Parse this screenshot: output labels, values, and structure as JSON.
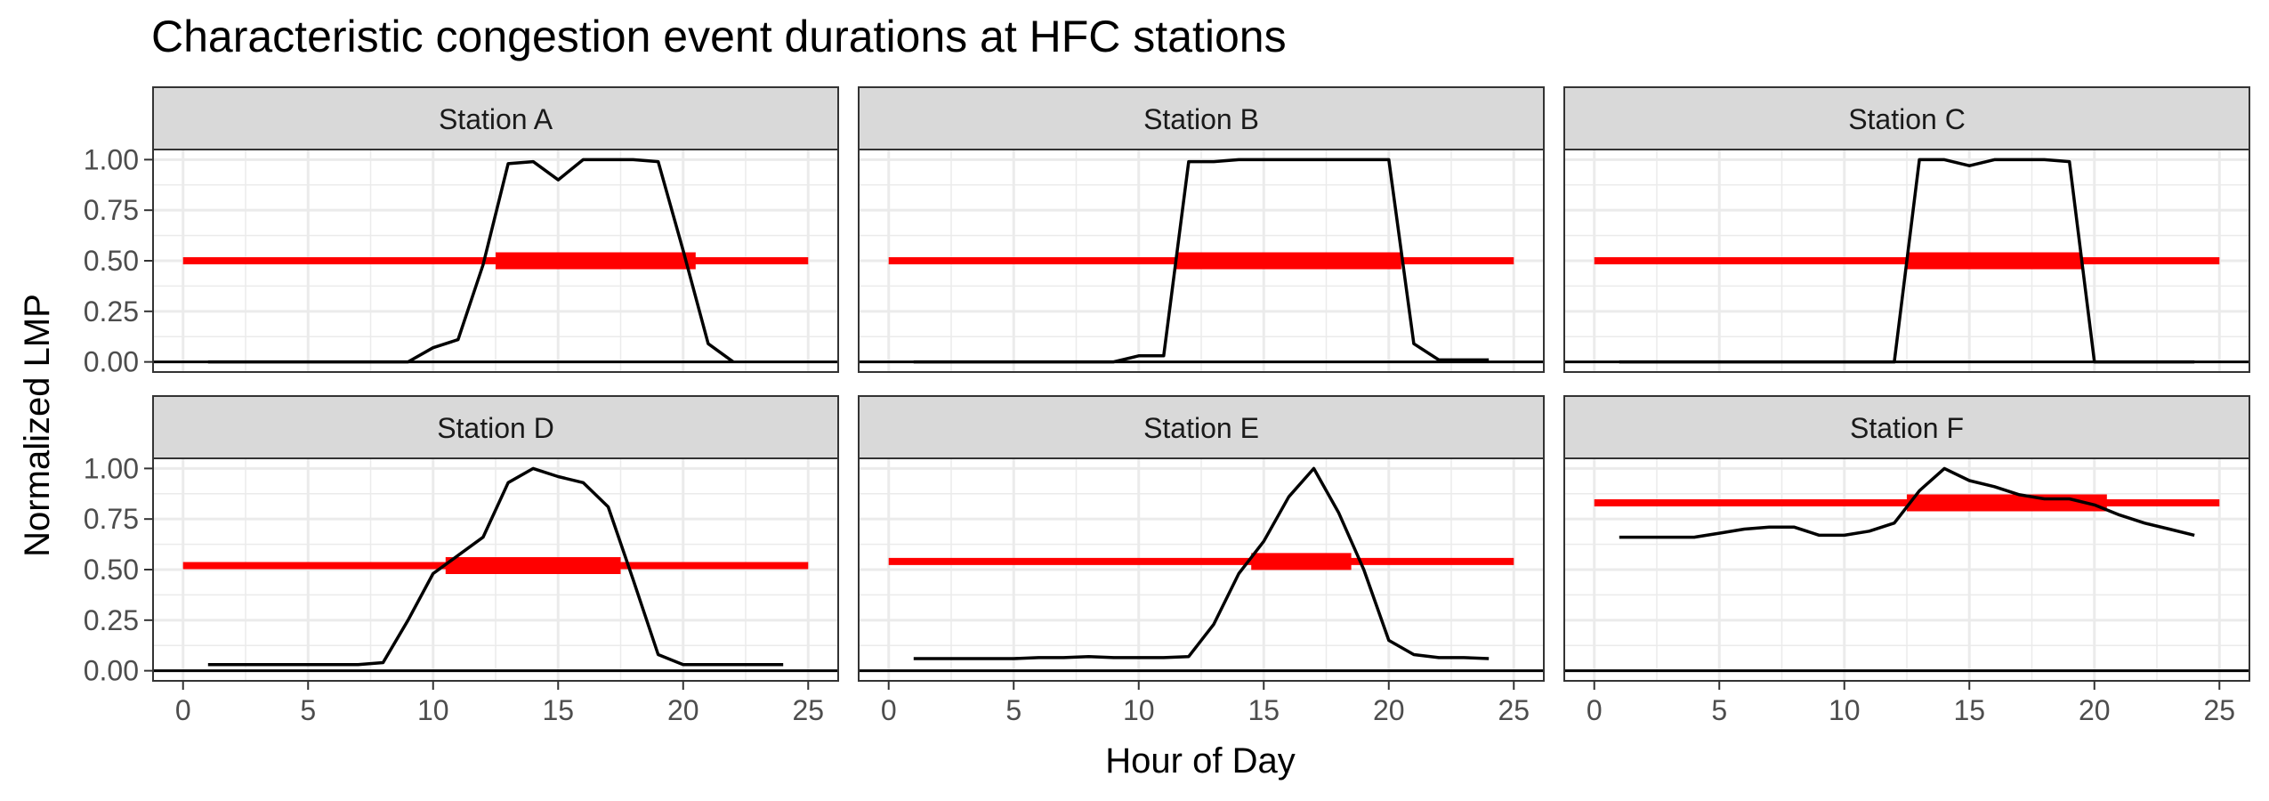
{
  "chart_data": {
    "type": "line",
    "title": "Characteristic congestion event durations at HFC stations",
    "xlabel": "Hour of Day",
    "ylabel": "Normalized LMP",
    "xlim": [
      -1.2,
      26.2
    ],
    "ylim": [
      -0.05,
      1.05
    ],
    "x_ticks": [
      0,
      5,
      10,
      15,
      20,
      25
    ],
    "y_ticks": [
      0.0,
      0.25,
      0.5,
      0.75,
      1.0
    ],
    "x_tick_labels": [
      "0",
      "5",
      "10",
      "15",
      "20",
      "25"
    ],
    "y_tick_labels": [
      "0.00",
      "0.25",
      "0.50",
      "0.75",
      "1.00"
    ],
    "grid": true,
    "threshold_line_range": [
      0,
      25
    ],
    "colors": {
      "lmp": "#000000",
      "threshold": "#ff0000",
      "strip": "#d9d9d9",
      "grid": "#ebebeb"
    },
    "panels": [
      {
        "title": "Station A",
        "lmp": {
          "x": [
            1,
            2,
            3,
            4,
            5,
            6,
            7,
            8,
            9,
            10,
            11,
            12,
            13,
            14,
            15,
            16,
            17,
            18,
            19,
            20,
            21,
            22
          ],
          "y": [
            0,
            0,
            0,
            0,
            0,
            0,
            0,
            0,
            0,
            0.07,
            0.11,
            0.48,
            0.98,
            0.99,
            0.9,
            1.0,
            1.0,
            1.0,
            0.99,
            0.55,
            0.09,
            0
          ]
        },
        "threshold": 0.5,
        "event_start": 12.5,
        "event_end": 20.5
      },
      {
        "title": "Station B",
        "lmp": {
          "x": [
            1,
            2,
            3,
            4,
            5,
            6,
            7,
            8,
            9,
            10,
            11,
            12,
            13,
            14,
            15,
            16,
            17,
            18,
            19,
            20,
            21,
            22,
            23,
            24
          ],
          "y": [
            0,
            0,
            0,
            0,
            0,
            0,
            0,
            0,
            0,
            0.03,
            0.03,
            0.99,
            0.99,
            1.0,
            1.0,
            1.0,
            1.0,
            1.0,
            1.0,
            1.0,
            0.09,
            0.01,
            0.01,
            0.01
          ]
        },
        "threshold": 0.5,
        "event_start": 11.5,
        "event_end": 20.5
      },
      {
        "title": "Station C",
        "lmp": {
          "x": [
            1,
            2,
            3,
            4,
            5,
            6,
            7,
            8,
            9,
            10,
            11,
            12,
            13,
            14,
            15,
            16,
            17,
            18,
            19,
            20,
            21,
            22,
            23,
            24
          ],
          "y": [
            0,
            0,
            0,
            0,
            0,
            0,
            0,
            0,
            0,
            0,
            0,
            0,
            1.0,
            1.0,
            0.97,
            1.0,
            1.0,
            1.0,
            0.99,
            0,
            0,
            0,
            0,
            0
          ]
        },
        "threshold": 0.5,
        "event_start": 12.5,
        "event_end": 19.5
      },
      {
        "title": "Station D",
        "lmp": {
          "x": [
            1,
            2,
            3,
            4,
            5,
            6,
            7,
            8,
            9,
            10,
            11,
            12,
            13,
            14,
            15,
            16,
            17,
            18,
            19,
            20,
            21,
            22,
            23,
            24
          ],
          "y": [
            0.03,
            0.03,
            0.03,
            0.03,
            0.03,
            0.03,
            0.03,
            0.04,
            0.25,
            0.48,
            0.57,
            0.66,
            0.93,
            1.0,
            0.96,
            0.93,
            0.81,
            0.45,
            0.08,
            0.03,
            0.03,
            0.03,
            0.03,
            0.03
          ]
        },
        "threshold": 0.52,
        "event_start": 10.5,
        "event_end": 17.5
      },
      {
        "title": "Station E",
        "lmp": {
          "x": [
            1,
            2,
            3,
            4,
            5,
            6,
            7,
            8,
            9,
            10,
            11,
            12,
            13,
            14,
            15,
            16,
            17,
            18,
            19,
            20,
            21,
            22,
            23,
            24
          ],
          "y": [
            0.06,
            0.06,
            0.06,
            0.06,
            0.06,
            0.065,
            0.065,
            0.07,
            0.065,
            0.065,
            0.065,
            0.07,
            0.23,
            0.48,
            0.64,
            0.86,
            1.0,
            0.78,
            0.5,
            0.15,
            0.08,
            0.065,
            0.065,
            0.06
          ]
        },
        "threshold": 0.54,
        "event_start": 14.5,
        "event_end": 18.5
      },
      {
        "title": "Station F",
        "lmp": {
          "x": [
            1,
            2,
            3,
            4,
            5,
            6,
            7,
            8,
            9,
            10,
            11,
            12,
            13,
            14,
            15,
            16,
            17,
            18,
            19,
            20,
            21,
            22,
            23,
            24
          ],
          "y": [
            0.66,
            0.66,
            0.66,
            0.66,
            0.68,
            0.7,
            0.71,
            0.71,
            0.67,
            0.67,
            0.69,
            0.73,
            0.89,
            1.0,
            0.94,
            0.91,
            0.87,
            0.85,
            0.85,
            0.82,
            0.77,
            0.73,
            0.7,
            0.67
          ]
        },
        "threshold": 0.83,
        "event_start": 12.5,
        "event_end": 20.5
      }
    ]
  }
}
